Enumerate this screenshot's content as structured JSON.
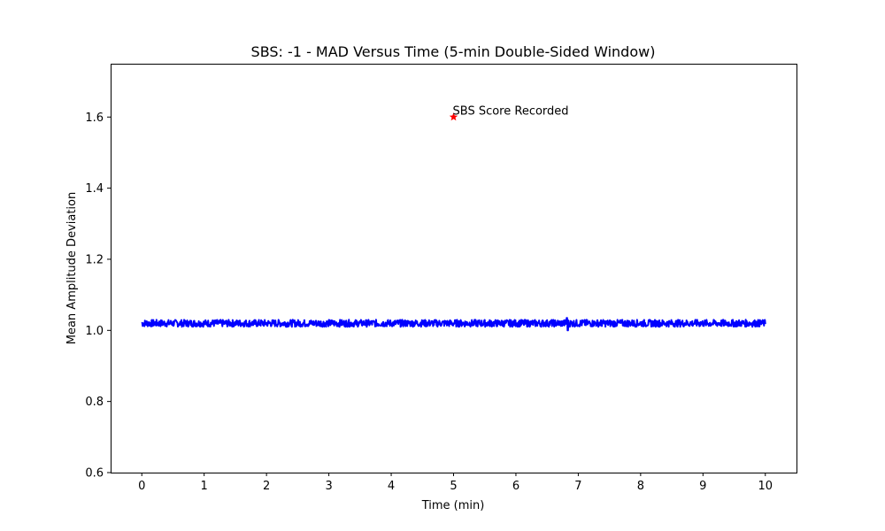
{
  "chart_data": {
    "type": "line",
    "title": "SBS: -1 - MAD Versus Time (5-min Double-Sided Window)",
    "xlabel": "Time (min)",
    "ylabel": "Mean Amplitude Deviation",
    "xlim": [
      -0.5,
      10.5
    ],
    "ylim": [
      0.6,
      1.75
    ],
    "xticks": [
      0,
      1,
      2,
      3,
      4,
      5,
      6,
      7,
      8,
      9,
      10
    ],
    "yticks": [
      0.6,
      0.8,
      1.0,
      1.2,
      1.4,
      1.6
    ],
    "xtick_labels": [
      "0",
      "1",
      "2",
      "3",
      "4",
      "5",
      "6",
      "7",
      "8",
      "9",
      "10"
    ],
    "ytick_labels": [
      "0.6",
      "0.8",
      "1.0",
      "1.2",
      "1.4",
      "1.6"
    ],
    "grid": false,
    "series": [
      {
        "color": "#0000ff",
        "x_range": [
          0,
          10
        ],
        "mean": 1.02,
        "band_min": 1.01,
        "band_max": 1.03,
        "notable_points": [
          {
            "x": 6.82,
            "y": 1.035
          },
          {
            "x": 6.83,
            "y": 1.0
          }
        ]
      }
    ],
    "marker": {
      "x": 5,
      "y": 1.6,
      "color": "#ff0000",
      "shape": "star"
    },
    "annotation": {
      "text": "SBS Score Recorded",
      "x": 5,
      "y": 1.6
    }
  }
}
